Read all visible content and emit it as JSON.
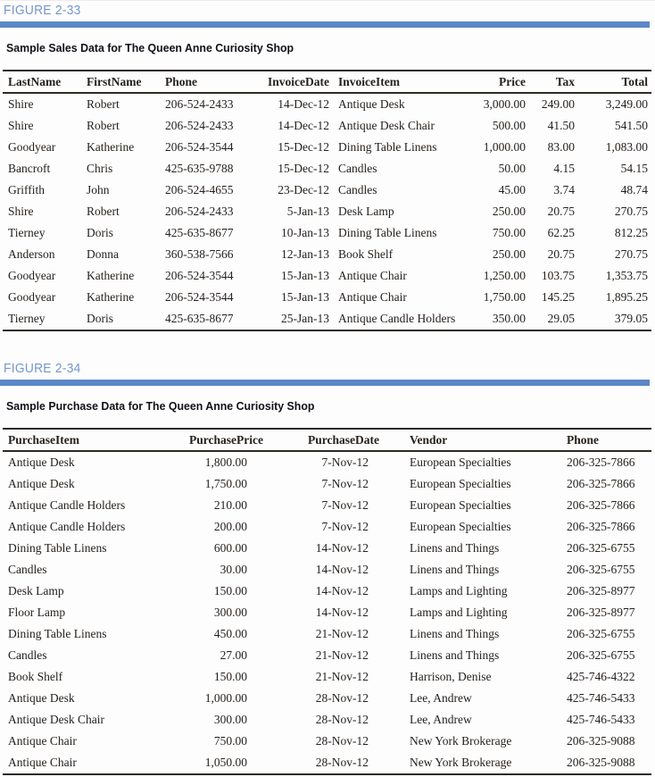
{
  "colors": {
    "figure_label_blue": "#7396cd",
    "rule_blue": "#5c87c6",
    "caption_text": "#141019",
    "table_text": "#26211d",
    "table_border": "#2e2a26"
  },
  "figures": [
    {
      "label": "FIGURE 2-33",
      "caption": "Sample Sales Data for The Queen Anne Curiosity Shop",
      "table": {
        "columns": [
          "LastName",
          "FirstName",
          "Phone",
          "InvoiceDate",
          "InvoiceItem",
          "Price",
          "Tax",
          "Total"
        ],
        "rows": [
          [
            "Shire",
            "Robert",
            "206-524-2433",
            "14-Dec-12",
            "Antique Desk",
            "3,000.00",
            "249.00",
            "3,249.00"
          ],
          [
            "Shire",
            "Robert",
            "206-524-2433",
            "14-Dec-12",
            "Antique Desk Chair",
            "500.00",
            "41.50",
            "541.50"
          ],
          [
            "Goodyear",
            "Katherine",
            "206-524-3544",
            "15-Dec-12",
            "Dining Table Linens",
            "1,000.00",
            "83.00",
            "1,083.00"
          ],
          [
            "Bancroft",
            "Chris",
            "425-635-9788",
            "15-Dec-12",
            "Candles",
            "50.00",
            "4.15",
            "54.15"
          ],
          [
            "Griffith",
            "John",
            "206-524-4655",
            "23-Dec-12",
            "Candles",
            "45.00",
            "3.74",
            "48.74"
          ],
          [
            "Shire",
            "Robert",
            "206-524-2433",
            "5-Jan-13",
            "Desk Lamp",
            "250.00",
            "20.75",
            "270.75"
          ],
          [
            "Tierney",
            "Doris",
            "425-635-8677",
            "10-Jan-13",
            "Dining Table Linens",
            "750.00",
            "62.25",
            "812.25"
          ],
          [
            "Anderson",
            "Donna",
            "360-538-7566",
            "12-Jan-13",
            "Book Shelf",
            "250.00",
            "20.75",
            "270.75"
          ],
          [
            "Goodyear",
            "Katherine",
            "206-524-3544",
            "15-Jan-13",
            "Antique Chair",
            "1,250.00",
            "103.75",
            "1,353.75"
          ],
          [
            "Goodyear",
            "Katherine",
            "206-524-3544",
            "15-Jan-13",
            "Antique Chair",
            "1,750.00",
            "145.25",
            "1,895.25"
          ],
          [
            "Tierney",
            "Doris",
            "425-635-8677",
            "25-Jan-13",
            "Antique Candle Holders",
            "350.00",
            "29.05",
            "379.05"
          ]
        ]
      }
    },
    {
      "label": "FIGURE 2-34",
      "caption": "Sample Purchase Data for The Queen Anne Curiosity Shop",
      "table": {
        "columns": [
          "PurchaseItem",
          "PurchasePrice",
          "PurchaseDate",
          "Vendor",
          "Phone"
        ],
        "rows": [
          [
            "Antique Desk",
            "1,800.00",
            "7-Nov-12",
            "European Specialties",
            "206-325-7866"
          ],
          [
            "Antique Desk",
            "1,750.00",
            "7-Nov-12",
            "European Specialties",
            "206-325-7866"
          ],
          [
            "Antique Candle Holders",
            "210.00",
            "7-Nov-12",
            "European Specialties",
            "206-325-7866"
          ],
          [
            "Antique Candle Holders",
            "200.00",
            "7-Nov-12",
            "European Specialties",
            "206-325-7866"
          ],
          [
            "Dining Table Linens",
            "600.00",
            "14-Nov-12",
            "Linens and Things",
            "206-325-6755"
          ],
          [
            "Candles",
            "30.00",
            "14-Nov-12",
            "Linens and Things",
            "206-325-6755"
          ],
          [
            "Desk Lamp",
            "150.00",
            "14-Nov-12",
            "Lamps and Lighting",
            "206-325-8977"
          ],
          [
            "Floor Lamp",
            "300.00",
            "14-Nov-12",
            "Lamps and Lighting",
            "206-325-8977"
          ],
          [
            "Dining Table Linens",
            "450.00",
            "21-Nov-12",
            "Linens and Things",
            "206-325-6755"
          ],
          [
            "Candles",
            "27.00",
            "21-Nov-12",
            "Linens and Things",
            "206-325-6755"
          ],
          [
            "Book Shelf",
            "150.00",
            "21-Nov-12",
            "Harrison, Denise",
            "425-746-4322"
          ],
          [
            "Antique Desk",
            "1,000.00",
            "28-Nov-12",
            "Lee, Andrew",
            "425-746-5433"
          ],
          [
            "Antique Desk Chair",
            "300.00",
            "28-Nov-12",
            "Lee, Andrew",
            "425-746-5433"
          ],
          [
            "Antique Chair",
            "750.00",
            "28-Nov-12",
            "New York Brokerage",
            "206-325-9088"
          ],
          [
            "Antique Chair",
            "1,050.00",
            "28-Nov-12",
            "New York Brokerage",
            "206-325-9088"
          ]
        ]
      }
    }
  ]
}
